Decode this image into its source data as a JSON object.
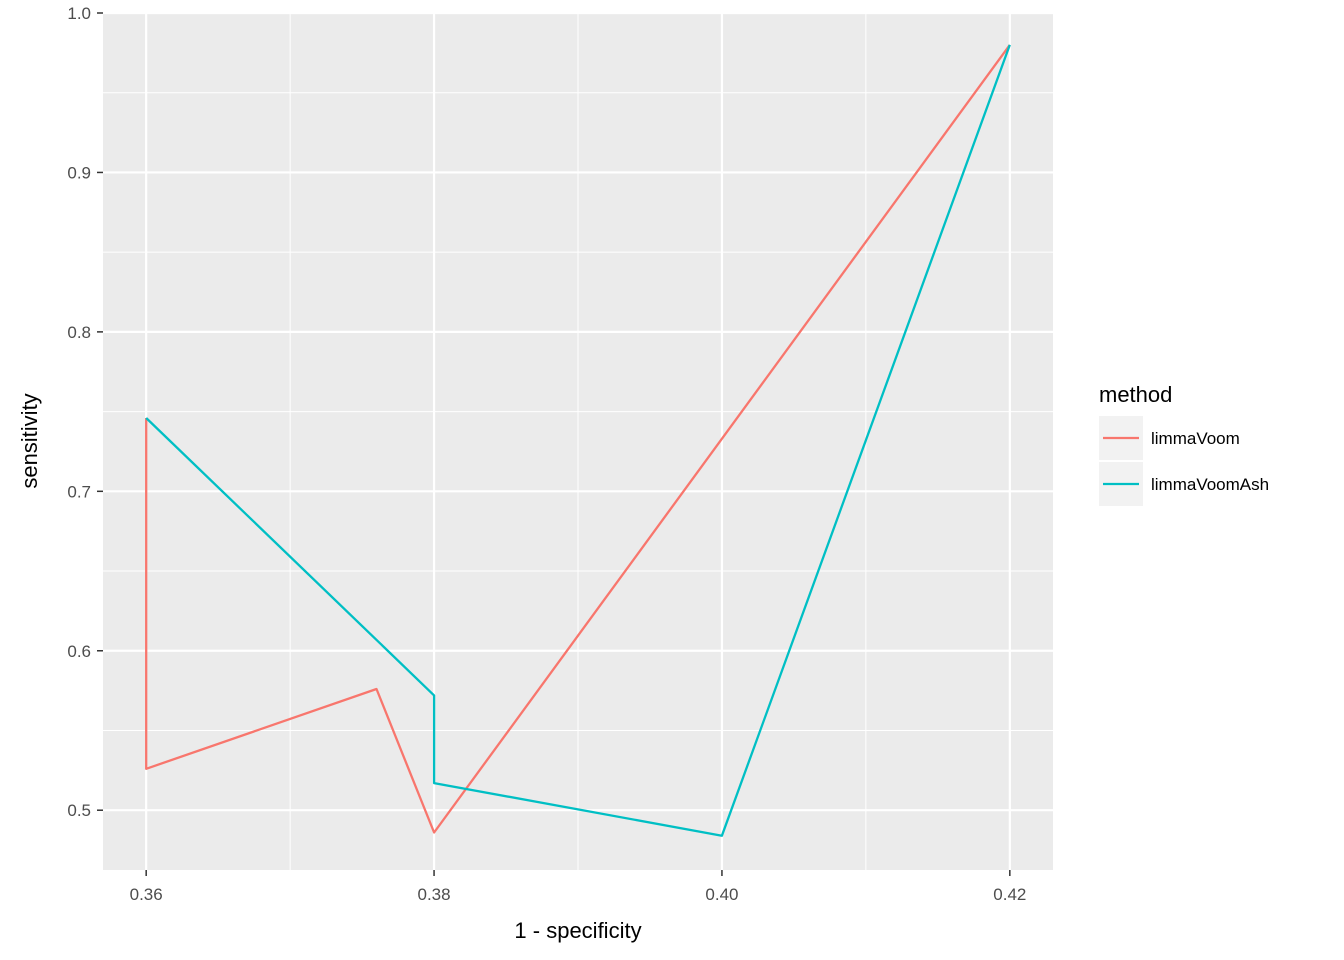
{
  "chart_data": {
    "type": "line",
    "title": "",
    "xlabel": "1 - specificity",
    "ylabel": "sensitivity",
    "xlim": [
      0.357,
      0.423
    ],
    "ylim": [
      0.4625,
      1.0
    ],
    "x_ticks": [
      0.36,
      0.38,
      0.4,
      0.42
    ],
    "x_tick_labels": [
      "0.36",
      "0.38",
      "0.40",
      "0.42"
    ],
    "x_minor_ticks": [
      0.37,
      0.39,
      0.41
    ],
    "y_ticks": [
      0.5,
      0.6,
      0.7,
      0.8,
      0.9,
      1.0
    ],
    "y_tick_labels": [
      "0.5",
      "0.6",
      "0.7",
      "0.8",
      "0.9",
      "1.0"
    ],
    "y_minor_ticks": [
      0.55,
      0.65,
      0.75,
      0.85,
      0.95
    ],
    "grid": true,
    "legend": {
      "title": "method",
      "position": "right"
    },
    "series": [
      {
        "name": "limmaVoom",
        "color": "#F8766D",
        "points": [
          [
            0.42,
            0.98
          ],
          [
            0.38,
            0.486
          ],
          [
            0.376,
            0.576
          ],
          [
            0.36,
            0.526
          ],
          [
            0.36,
            0.746
          ]
        ]
      },
      {
        "name": "limmaVoomAsh",
        "color": "#00BFC4",
        "points": [
          [
            0.42,
            0.98
          ],
          [
            0.4,
            0.484
          ],
          [
            0.38,
            0.517
          ],
          [
            0.38,
            0.572
          ],
          [
            0.36,
            0.746
          ]
        ]
      }
    ]
  }
}
